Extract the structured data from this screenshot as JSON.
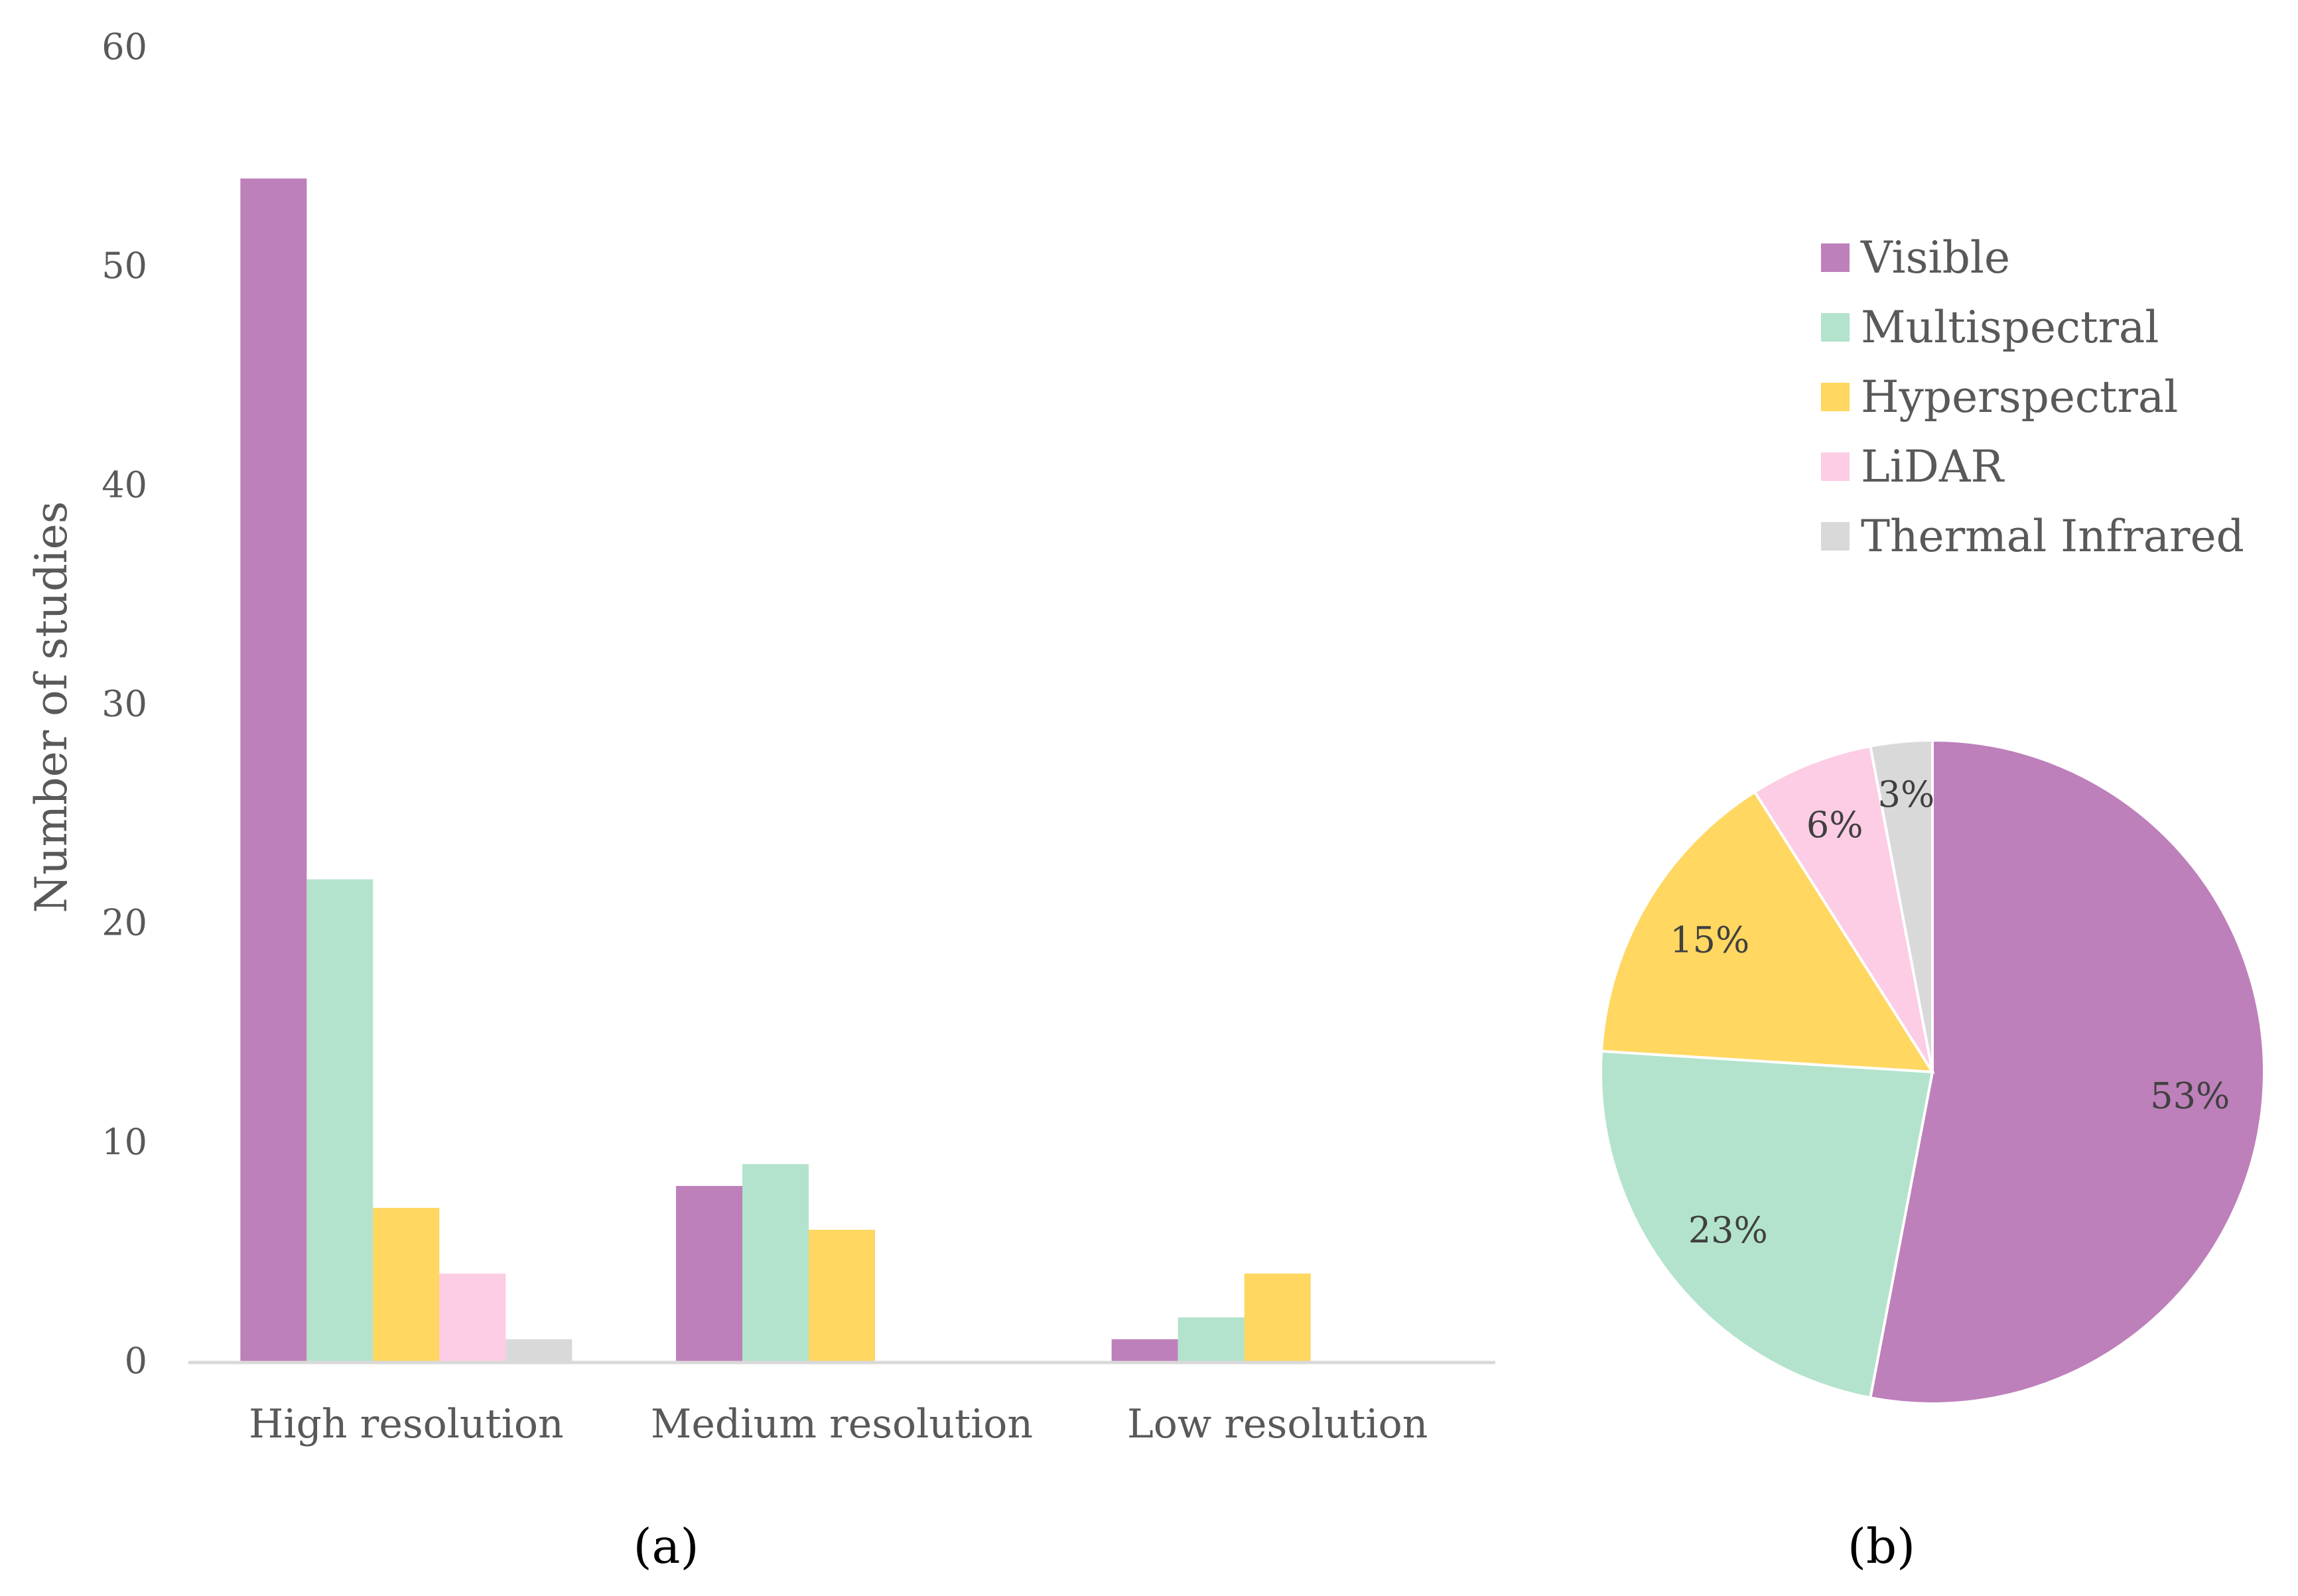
{
  "chart_data": [
    {
      "type": "bar",
      "caption": "(a)",
      "ylabel": "Number of studies",
      "xlabel": "",
      "ylim": [
        0,
        60
      ],
      "yticks": [
        "0",
        "10",
        "20",
        "30",
        "40",
        "50",
        "60"
      ],
      "grid": false,
      "categories": [
        "High resolution",
        "Medium resolution",
        "Low resolution"
      ],
      "series": [
        {
          "name": "Visible",
          "color": "#BD80BA",
          "values": [
            54,
            8,
            1
          ]
        },
        {
          "name": "Multispectral",
          "color": "#B3E3CC",
          "values": [
            22,
            9,
            2
          ]
        },
        {
          "name": "Hyperspectral",
          "color": "#FFD761",
          "values": [
            7,
            6,
            4
          ]
        },
        {
          "name": "LiDAR",
          "color": "#FDCCE5",
          "values": [
            4,
            0,
            0
          ]
        },
        {
          "name": "Thermal Infrared",
          "color": "#D9D9D9",
          "values": [
            1,
            0,
            0
          ]
        }
      ]
    },
    {
      "type": "pie",
      "caption": "(b)",
      "legend_position": "top-right",
      "slices": [
        {
          "name": "Visible",
          "value": 53,
          "label": "53%",
          "color": "#BD80BA"
        },
        {
          "name": "Multispectral",
          "value": 23,
          "label": "23%",
          "color": "#B3E3CC"
        },
        {
          "name": "Hyperspectral",
          "value": 15,
          "label": "15%",
          "color": "#FFD761"
        },
        {
          "name": "LiDAR",
          "value": 6,
          "label": "6%",
          "color": "#FDCCE5"
        },
        {
          "name": "Thermal Infrared",
          "value": 3,
          "label": "3%",
          "color": "#D9D9D9"
        }
      ]
    }
  ]
}
